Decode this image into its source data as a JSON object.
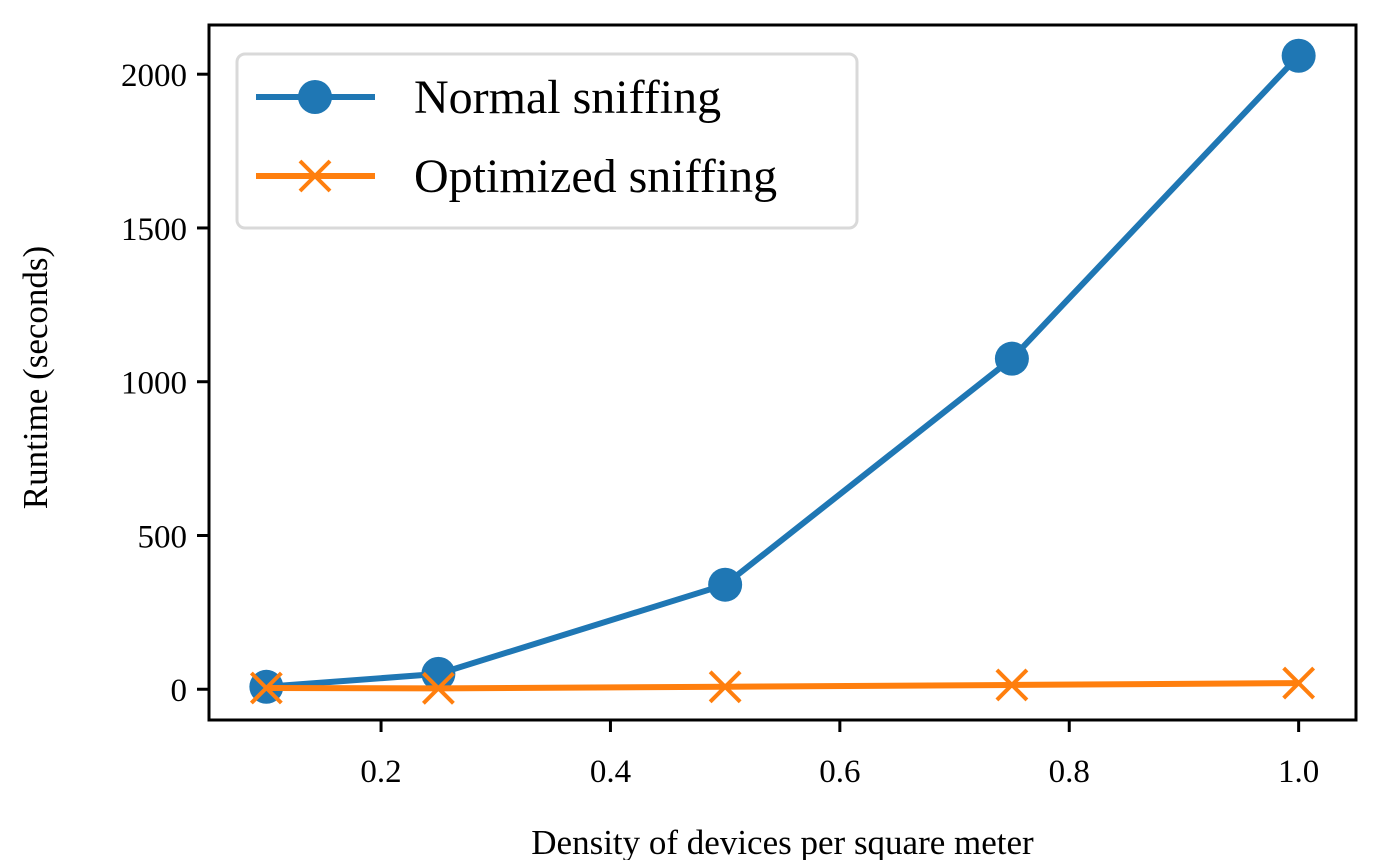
{
  "chart_data": {
    "type": "line",
    "title": "",
    "xlabel": "Density of devices per square meter",
    "ylabel": "Runtime (seconds)",
    "xlim": [
      0.05,
      1.05
    ],
    "ylim": [
      -100,
      2160
    ],
    "xticks": [
      0.2,
      0.4,
      0.6,
      0.8,
      1.0
    ],
    "xtick_labels": [
      "0.2",
      "0.4",
      "0.6",
      "0.8",
      "1.0"
    ],
    "yticks": [
      0,
      500,
      1000,
      1500,
      2000
    ],
    "ytick_labels": [
      "0",
      "500",
      "1000",
      "1500",
      "2000"
    ],
    "grid": false,
    "legend_position": "upper-left",
    "series": [
      {
        "name": "Normal sniffing",
        "color": "#1f77b4",
        "marker": "circle",
        "x": [
          0.1,
          0.25,
          0.5,
          0.75,
          1.0
        ],
        "values": [
          8,
          50,
          340,
          1075,
          2060
        ]
      },
      {
        "name": "Optimized sniffing",
        "color": "#ff7f0e",
        "marker": "x",
        "x": [
          0.1,
          0.25,
          0.5,
          0.75,
          1.0
        ],
        "values": [
          4,
          3,
          8,
          14,
          20
        ]
      }
    ]
  }
}
